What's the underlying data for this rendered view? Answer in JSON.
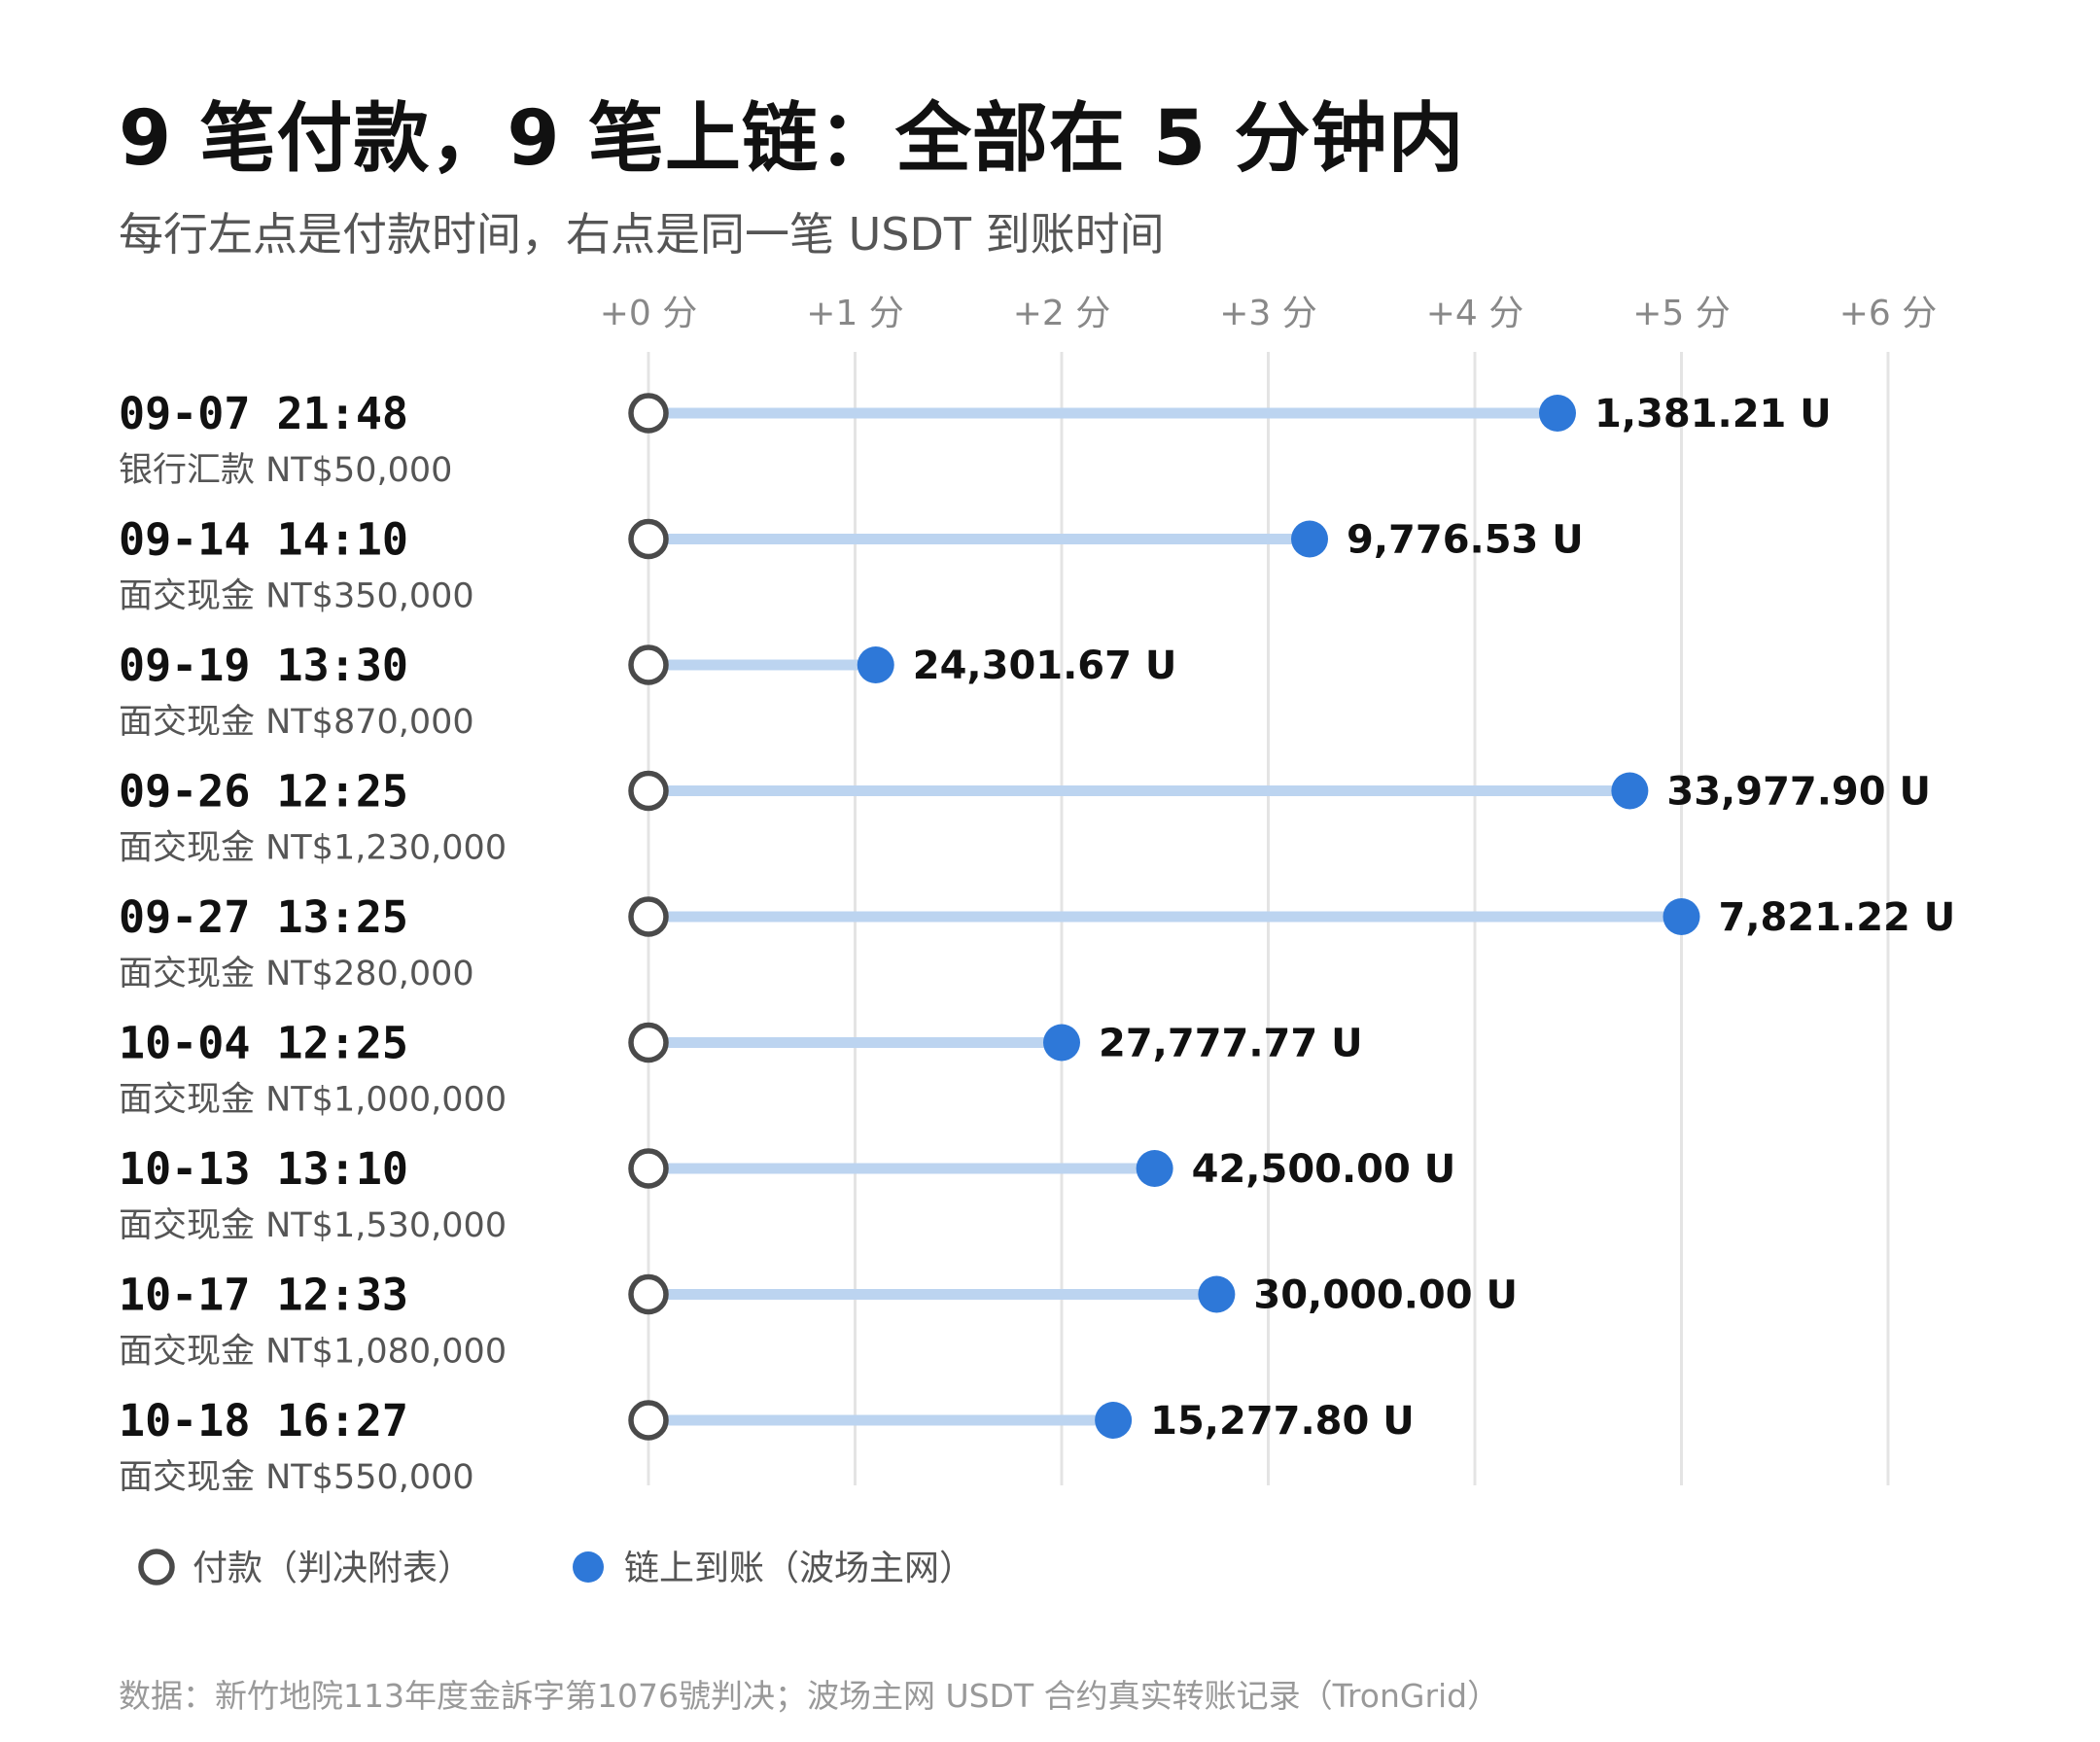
{
  "title": "9 笔付款，9 笔上链：全部在 5 分钟内",
  "subtitle": "每行左点是付款时间，右点是同一笔 USDT 到账时间",
  "source": "数据：新竹地院113年度金訴字第1076號判决；波场主网 USDT 合约真实转账记录（TronGrid）",
  "colors": {
    "payment_marker_stroke": "#4a4a4a",
    "onchain_marker": "#2e78d8",
    "connector": "#bcd4f0",
    "gridline": "#e4e4e4"
  },
  "legend": [
    {
      "label": "付款（判决附表）",
      "icon": "hollow-circle"
    },
    {
      "label": "链上到账（波场主网）",
      "icon": "filled-blue-circle"
    }
  ],
  "chart_data": {
    "type": "dumbbell",
    "x_axis": {
      "ticks": [
        0,
        1,
        2,
        3,
        4,
        5,
        6
      ],
      "tick_labels": [
        "+0 分",
        "+1 分",
        "+2 分",
        "+3 分",
        "+4 分",
        "+5 分",
        "+6 分"
      ],
      "range": [
        0,
        6
      ],
      "position": "top",
      "grid": true
    },
    "rows": [
      {
        "date": "09-07 21:48",
        "note": "银行汇款 NT$50,000",
        "start": 0,
        "end": 4.4,
        "value_label": "1,381.21 U"
      },
      {
        "date": "09-14 14:10",
        "note": "面交现金 NT$350,000",
        "start": 0,
        "end": 3.2,
        "value_label": "9,776.53 U"
      },
      {
        "date": "09-19 13:30",
        "note": "面交现金 NT$870,000",
        "start": 0,
        "end": 1.1,
        "value_label": "24,301.67 U"
      },
      {
        "date": "09-26 12:25",
        "note": "面交现金 NT$1,230,000",
        "start": 0,
        "end": 4.75,
        "value_label": "33,977.90 U"
      },
      {
        "date": "09-27 13:25",
        "note": "面交现金 NT$280,000",
        "start": 0,
        "end": 5.0,
        "value_label": "7,821.22 U"
      },
      {
        "date": "10-04 12:25",
        "note": "面交现金 NT$1,000,000",
        "start": 0,
        "end": 2.0,
        "value_label": "27,777.77 U"
      },
      {
        "date": "10-13 13:10",
        "note": "面交现金 NT$1,530,000",
        "start": 0,
        "end": 2.45,
        "value_label": "42,500.00 U"
      },
      {
        "date": "10-17 12:33",
        "note": "面交现金 NT$1,080,000",
        "start": 0,
        "end": 2.75,
        "value_label": "30,000.00 U"
      },
      {
        "date": "10-18 16:27",
        "note": "面交现金 NT$550,000",
        "start": 0,
        "end": 2.25,
        "value_label": "15,277.80 U"
      }
    ]
  }
}
